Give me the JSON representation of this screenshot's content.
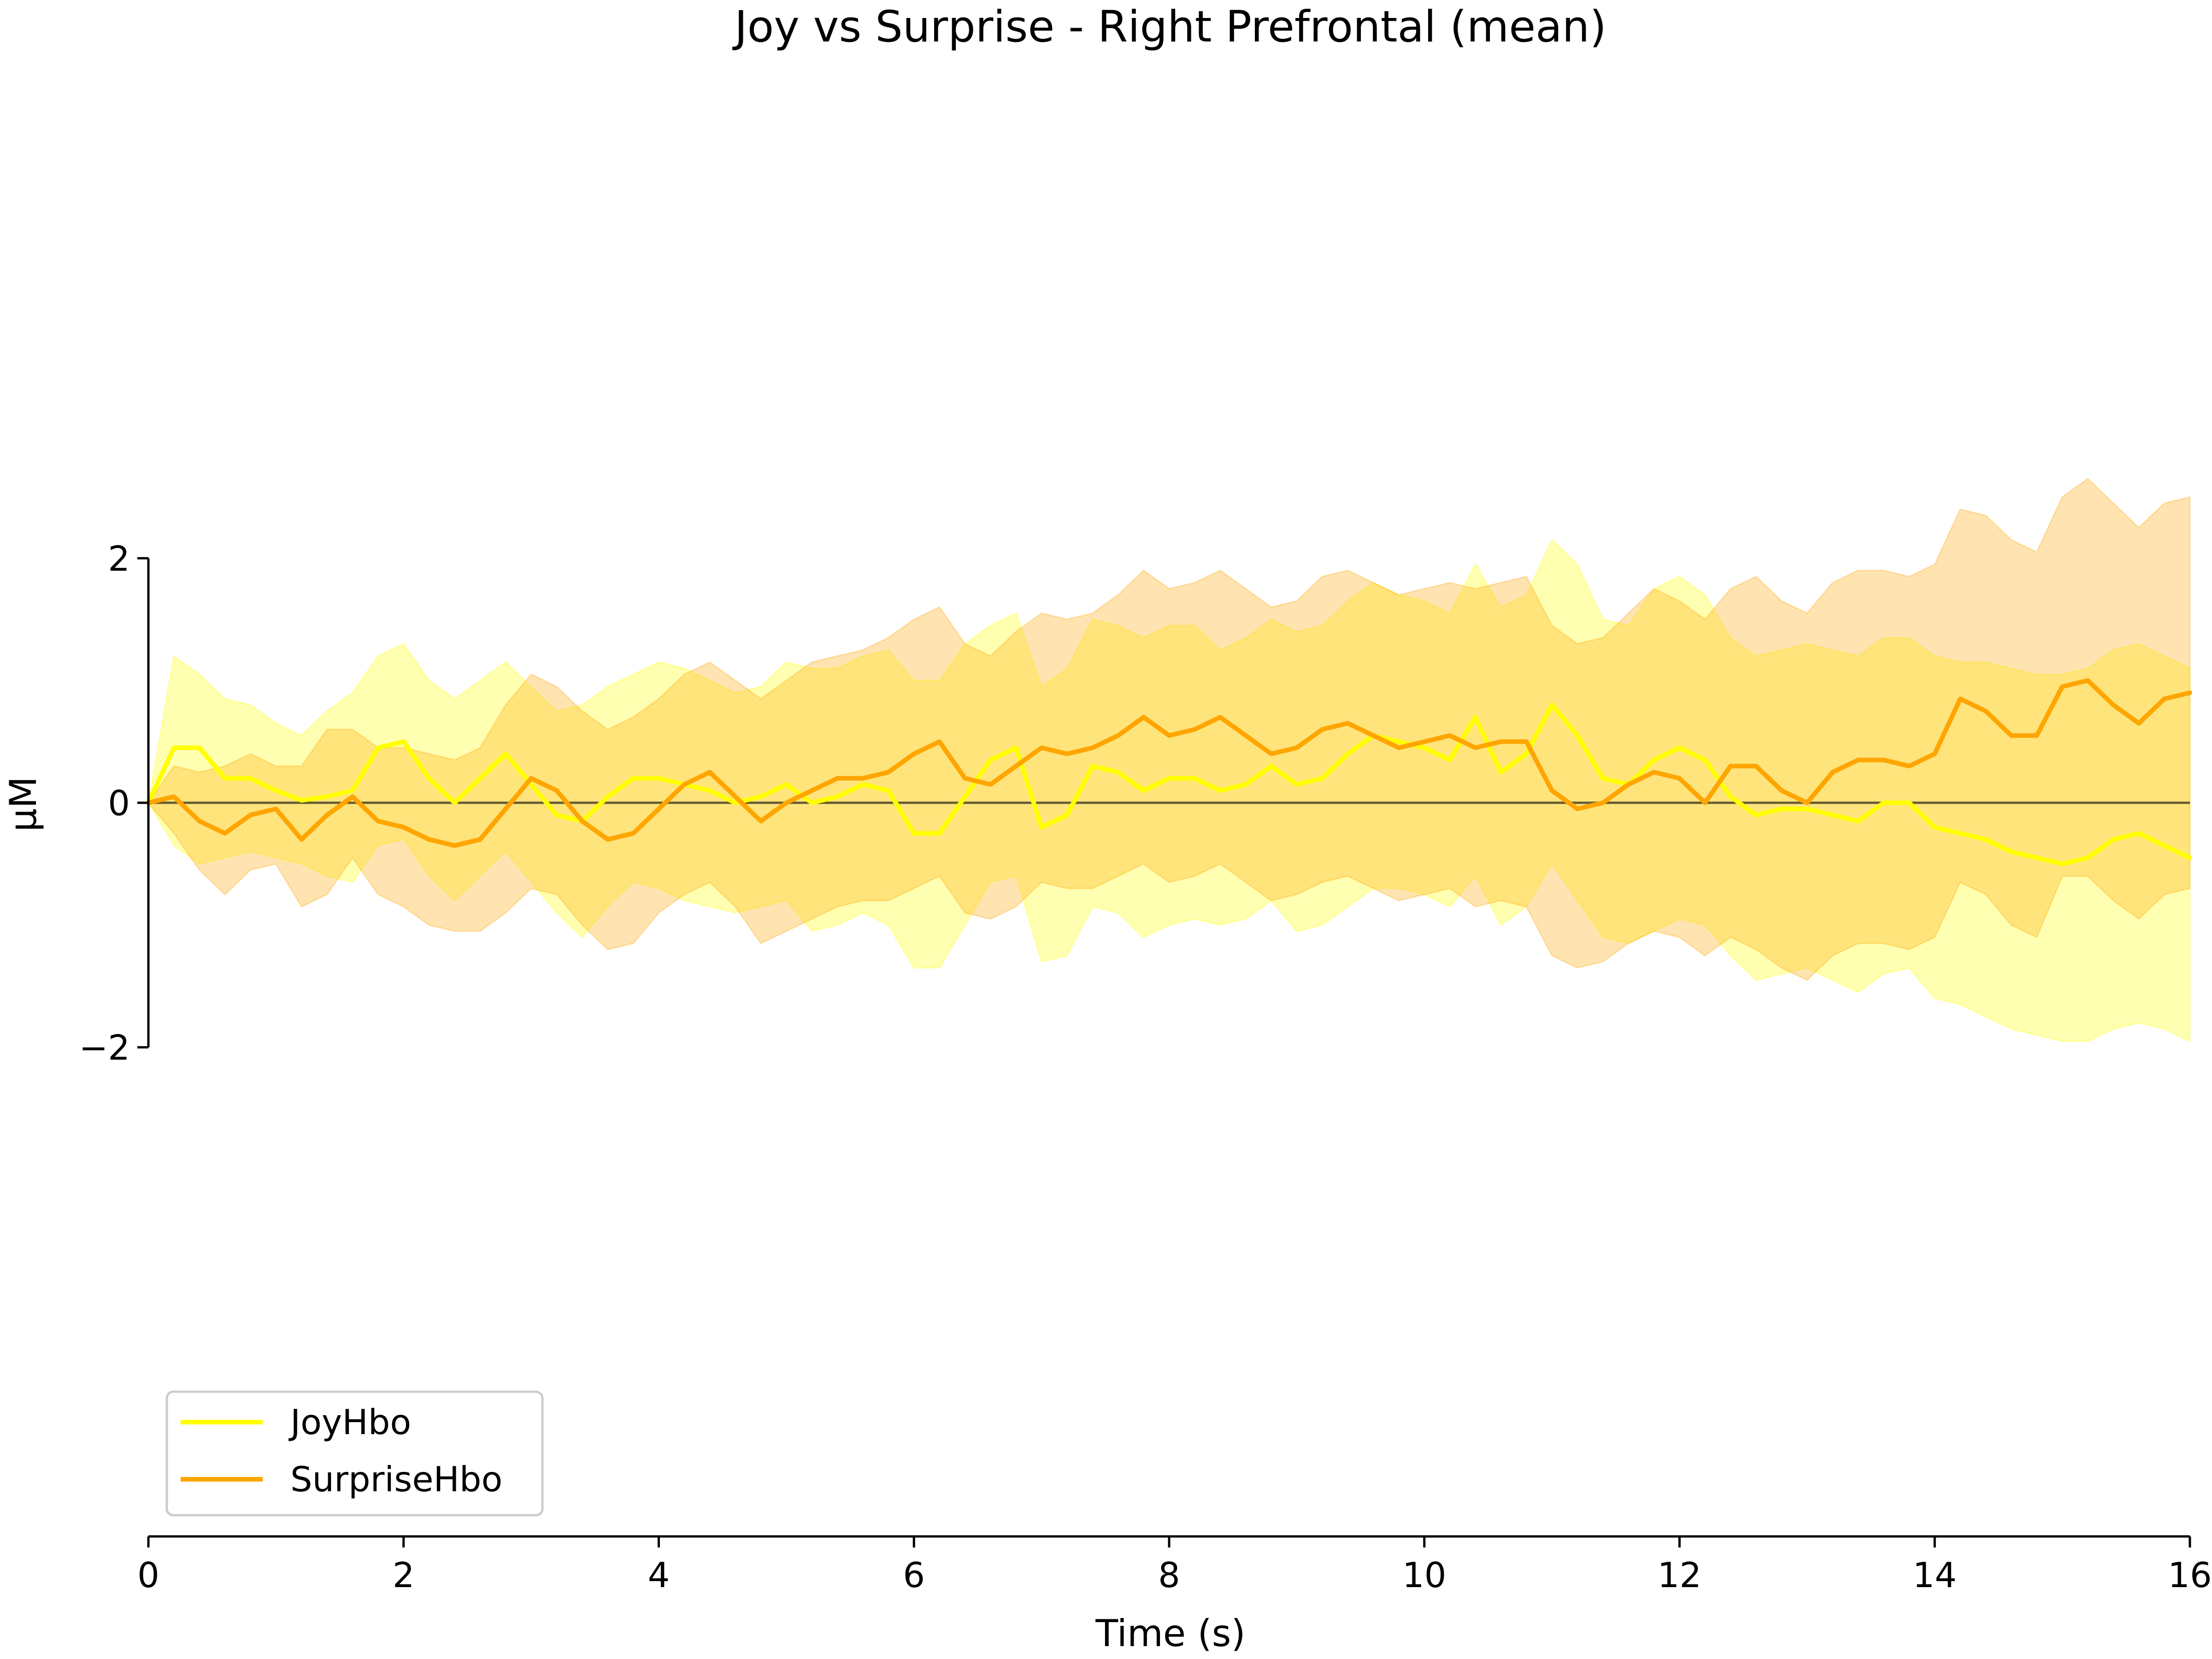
{
  "chart_data": {
    "type": "line",
    "title": "Joy vs Surprise - Right Prefrontal (mean)",
    "xlabel": "Time (s)",
    "ylabel": "μM",
    "xlim": [
      0,
      16
    ],
    "ylim": [
      -6,
      6
    ],
    "visible_y_axis_range": [
      -2,
      2
    ],
    "x_ticks": [
      0,
      2,
      4,
      6,
      8,
      10,
      12,
      14,
      16
    ],
    "y_ticks": [
      -2,
      0,
      2
    ],
    "x_tick_labels": [
      "0",
      "2",
      "4",
      "6",
      "8",
      "10",
      "12",
      "14",
      "16"
    ],
    "y_tick_labels": [
      "−2",
      "0",
      "2"
    ],
    "grid": false,
    "zero_line": true,
    "legend_position": "lower-left",
    "x": [
      0,
      0.2,
      0.4,
      0.6,
      0.8,
      1.0,
      1.2,
      1.4,
      1.6,
      1.8,
      2.0,
      2.2,
      2.4,
      2.6,
      2.8,
      3.0,
      3.2,
      3.4,
      3.6,
      3.8,
      4.0,
      4.2,
      4.4,
      4.6,
      4.8,
      5.0,
      5.2,
      5.4,
      5.6,
      5.8,
      6.0,
      6.2,
      6.4,
      6.6,
      6.8,
      7.0,
      7.2,
      7.4,
      7.6,
      7.8,
      8.0,
      8.2,
      8.4,
      8.6,
      8.8,
      9.0,
      9.2,
      9.4,
      9.6,
      9.8,
      10.0,
      10.2,
      10.4,
      10.6,
      10.8,
      11.0,
      11.2,
      11.4,
      11.6,
      11.8,
      12.0,
      12.2,
      12.4,
      12.6,
      12.8,
      13.0,
      13.2,
      13.4,
      13.6,
      13.8,
      14.0,
      14.2,
      14.4,
      14.6,
      14.8,
      15.0,
      15.2,
      15.4,
      15.6,
      15.8,
      16.0
    ],
    "series": [
      {
        "name": "JoyHbo",
        "color": "#ffff00",
        "values": [
          0,
          0.45,
          0.45,
          0.2,
          0.2,
          0.1,
          0.02,
          0.05,
          0.1,
          0.45,
          0.5,
          0.2,
          0.0,
          0.2,
          0.4,
          0.15,
          -0.1,
          -0.15,
          0.05,
          0.2,
          0.2,
          0.15,
          0.1,
          0.0,
          0.05,
          0.15,
          0.0,
          0.05,
          0.15,
          0.1,
          -0.25,
          -0.25,
          0.05,
          0.35,
          0.45,
          -0.2,
          -0.1,
          0.3,
          0.25,
          0.1,
          0.2,
          0.2,
          0.1,
          0.15,
          0.3,
          0.15,
          0.2,
          0.4,
          0.55,
          0.5,
          0.45,
          0.35,
          0.7,
          0.25,
          0.4,
          0.8,
          0.55,
          0.2,
          0.15,
          0.35,
          0.45,
          0.35,
          0.05,
          -0.1,
          -0.05,
          -0.05,
          -0.1,
          -0.15,
          0.0,
          0.0,
          -0.2,
          -0.25,
          -0.3,
          -0.4,
          -0.45,
          -0.5,
          -0.45,
          -0.3,
          -0.25,
          -0.35,
          -0.45
        ],
        "band_upper": [
          0,
          1.2,
          1.05,
          0.85,
          0.8,
          0.65,
          0.55,
          0.75,
          0.9,
          1.2,
          1.3,
          1.0,
          0.85,
          1.0,
          1.15,
          0.95,
          0.75,
          0.8,
          0.95,
          1.05,
          1.15,
          1.1,
          1.0,
          0.9,
          0.95,
          1.15,
          1.1,
          1.1,
          1.2,
          1.25,
          1.0,
          1.0,
          1.3,
          1.45,
          1.55,
          0.95,
          1.1,
          1.5,
          1.45,
          1.35,
          1.45,
          1.45,
          1.25,
          1.35,
          1.5,
          1.4,
          1.45,
          1.65,
          1.8,
          1.7,
          1.65,
          1.55,
          1.95,
          1.6,
          1.7,
          2.15,
          1.95,
          1.5,
          1.45,
          1.75,
          1.85,
          1.7,
          1.35,
          1.2,
          1.25,
          1.3,
          1.25,
          1.2,
          1.35,
          1.35,
          1.2,
          1.15,
          1.15,
          1.1,
          1.05,
          1.05,
          1.1,
          1.25,
          1.3,
          1.2,
          1.1
        ],
        "band_lower": [
          0,
          -0.35,
          -0.5,
          -0.45,
          -0.4,
          -0.45,
          -0.5,
          -0.6,
          -0.65,
          -0.35,
          -0.3,
          -0.6,
          -0.8,
          -0.6,
          -0.4,
          -0.65,
          -0.9,
          -1.1,
          -0.85,
          -0.65,
          -0.7,
          -0.8,
          -0.85,
          -0.9,
          -0.85,
          -0.8,
          -1.05,
          -1.0,
          -0.9,
          -1.0,
          -1.35,
          -1.35,
          -1.0,
          -0.65,
          -0.6,
          -1.3,
          -1.25,
          -0.85,
          -0.9,
          -1.1,
          -1.0,
          -0.95,
          -1.0,
          -0.95,
          -0.8,
          -1.05,
          -1.0,
          -0.85,
          -0.7,
          -0.7,
          -0.75,
          -0.85,
          -0.6,
          -1.0,
          -0.85,
          -0.5,
          -0.8,
          -1.1,
          -1.15,
          -1.05,
          -0.95,
          -1.0,
          -1.25,
          -1.45,
          -1.4,
          -1.35,
          -1.45,
          -1.55,
          -1.4,
          -1.35,
          -1.6,
          -1.65,
          -1.75,
          -1.85,
          -1.9,
          -1.95,
          -1.95,
          -1.85,
          -1.8,
          -1.85,
          -1.95
        ]
      },
      {
        "name": "SurpriseHbo",
        "color": "#ffa500",
        "values": [
          0,
          0.05,
          -0.15,
          -0.25,
          -0.1,
          -0.05,
          -0.3,
          -0.1,
          0.05,
          -0.15,
          -0.2,
          -0.3,
          -0.35,
          -0.3,
          -0.05,
          0.2,
          0.1,
          -0.15,
          -0.3,
          -0.25,
          -0.05,
          0.15,
          0.25,
          0.05,
          -0.15,
          0.0,
          0.1,
          0.2,
          0.2,
          0.25,
          0.4,
          0.5,
          0.2,
          0.15,
          0.3,
          0.45,
          0.4,
          0.45,
          0.55,
          0.7,
          0.55,
          0.6,
          0.7,
          0.55,
          0.4,
          0.45,
          0.6,
          0.65,
          0.55,
          0.45,
          0.5,
          0.55,
          0.45,
          0.5,
          0.5,
          0.1,
          -0.05,
          0.0,
          0.15,
          0.25,
          0.2,
          0.0,
          0.3,
          0.3,
          0.1,
          0.0,
          0.25,
          0.35,
          0.35,
          0.3,
          0.4,
          0.85,
          0.75,
          0.55,
          0.55,
          0.95,
          1.0,
          0.8,
          0.65,
          0.85,
          0.9
        ],
        "band_upper": [
          0,
          0.3,
          0.25,
          0.3,
          0.4,
          0.3,
          0.3,
          0.6,
          0.6,
          0.45,
          0.45,
          0.4,
          0.35,
          0.45,
          0.8,
          1.05,
          0.95,
          0.75,
          0.6,
          0.7,
          0.85,
          1.05,
          1.15,
          1.0,
          0.85,
          1.0,
          1.15,
          1.2,
          1.25,
          1.35,
          1.5,
          1.6,
          1.3,
          1.2,
          1.4,
          1.55,
          1.5,
          1.55,
          1.7,
          1.9,
          1.75,
          1.8,
          1.9,
          1.75,
          1.6,
          1.65,
          1.85,
          1.9,
          1.8,
          1.7,
          1.75,
          1.8,
          1.75,
          1.8,
          1.85,
          1.45,
          1.3,
          1.35,
          1.55,
          1.75,
          1.65,
          1.5,
          1.75,
          1.85,
          1.65,
          1.55,
          1.8,
          1.9,
          1.9,
          1.85,
          1.95,
          2.4,
          2.35,
          2.15,
          2.05,
          2.5,
          2.65,
          2.45,
          2.25,
          2.45,
          2.5
        ],
        "band_lower": [
          0,
          -0.25,
          -0.55,
          -0.75,
          -0.55,
          -0.5,
          -0.85,
          -0.75,
          -0.45,
          -0.75,
          -0.85,
          -1.0,
          -1.05,
          -1.05,
          -0.9,
          -0.7,
          -0.75,
          -1.0,
          -1.2,
          -1.15,
          -0.9,
          -0.75,
          -0.65,
          -0.85,
          -1.15,
          -1.05,
          -0.95,
          -0.85,
          -0.8,
          -0.8,
          -0.7,
          -0.6,
          -0.9,
          -0.95,
          -0.85,
          -0.65,
          -0.7,
          -0.7,
          -0.6,
          -0.5,
          -0.65,
          -0.6,
          -0.5,
          -0.65,
          -0.8,
          -0.75,
          -0.65,
          -0.6,
          -0.7,
          -0.8,
          -0.75,
          -0.7,
          -0.85,
          -0.8,
          -0.85,
          -1.25,
          -1.35,
          -1.3,
          -1.15,
          -1.05,
          -1.1,
          -1.25,
          -1.1,
          -1.2,
          -1.35,
          -1.45,
          -1.25,
          -1.15,
          -1.15,
          -1.2,
          -1.1,
          -0.65,
          -0.75,
          -1.0,
          -1.1,
          -0.6,
          -0.6,
          -0.8,
          -0.95,
          -0.75,
          -0.7
        ]
      }
    ]
  }
}
